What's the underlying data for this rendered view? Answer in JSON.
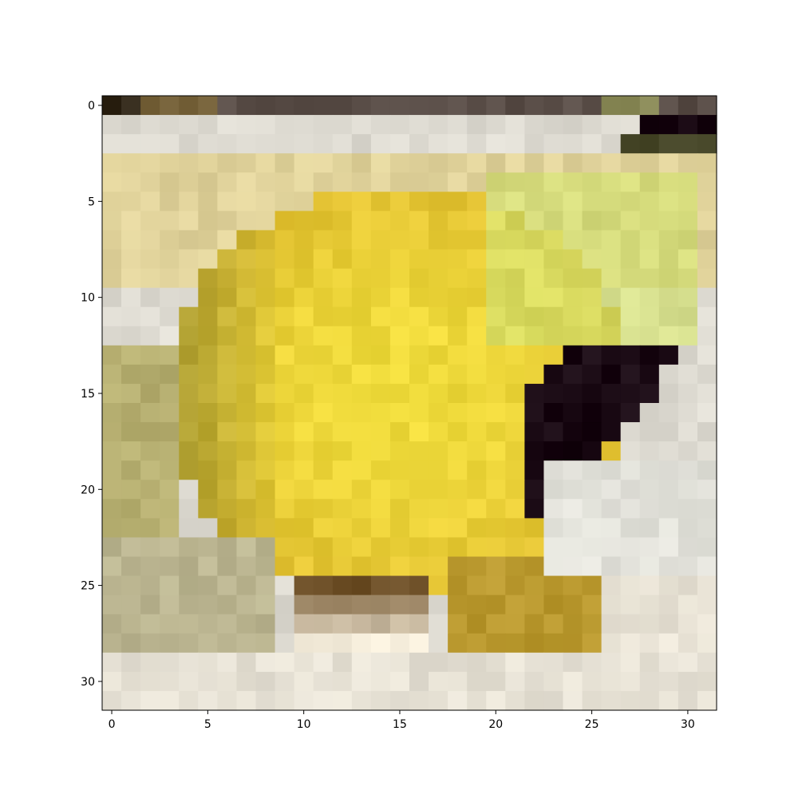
{
  "image": {
    "description_rows": 32,
    "description_cols": 32,
    "subject_palette": {
      "yellow": "#e2c032",
      "bright_yellow": "#f0dc3c",
      "olive": "#9c9230",
      "dark": "#1a0a14",
      "pale_bg": "#dedbd2",
      "cream": "#f2ead8",
      "lime": "#d2e070",
      "brown": "#6e5028"
    }
  },
  "axes": {
    "x_ticks": [
      "0",
      "5",
      "10",
      "15",
      "20",
      "25",
      "30"
    ],
    "y_ticks": [
      "0",
      "5",
      "10",
      "15",
      "20",
      "25",
      "30"
    ]
  }
}
